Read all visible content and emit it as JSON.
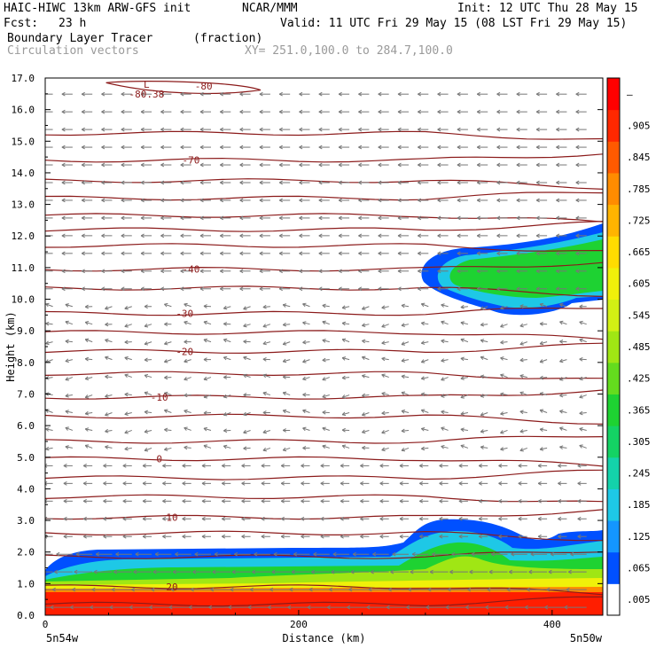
{
  "header": {
    "model": "HAIC-HIWC 13km ARW-GFS init",
    "org": "NCAR/MMM",
    "init": "Init: 12 UTC Thu 28 May 15",
    "fcst_label": "Fcst:",
    "fcst_value": "23 h",
    "valid": "Valid: 11 UTC Fri 29 May 15 (08 LST Fri 29 May 15)",
    "field1": "Boundary Layer Tracer",
    "field1_units": "(fraction)",
    "field2": "Circulation vectors",
    "xy": "XY= 251.0,100.0 to 284.7,100.0"
  },
  "chart_data": {
    "type": "heatmap",
    "xlabel": "Distance (km)",
    "ylabel": "Height (km)",
    "xlim": [
      0,
      440
    ],
    "ylim": [
      0,
      17
    ],
    "xticks": [
      0,
      200,
      400
    ],
    "yticks": [
      "0.0",
      "1.0",
      "2.0",
      "3.0",
      "4.0",
      "5.0",
      "6.0",
      "7.0",
      "8.0",
      "9.0",
      "10.0",
      "11.0",
      "12.0",
      "13.0",
      "14.0",
      "15.0",
      "16.0",
      "17.0"
    ],
    "x_endpoint_left": "5n54w",
    "x_endpoint_right": "5n50w",
    "colorbar": {
      "labels": [
        ".005",
        ".065",
        ".125",
        ".185",
        ".245",
        ".305",
        ".365",
        ".425",
        ".485",
        ".545",
        ".605",
        ".665",
        ".725",
        ".785",
        ".845",
        ".905",
        "–"
      ],
      "colors": [
        "#ffffff",
        "#0050ff",
        "#1496ff",
        "#1ec8e6",
        "#14d2aa",
        "#14d264",
        "#1ed232",
        "#64dc1e",
        "#a0e614",
        "#d2f014",
        "#f0f00a",
        "#ffdc00",
        "#ffb400",
        "#ff8c00",
        "#ff5a00",
        "#ff2800",
        "#ff0000"
      ]
    },
    "temperature_contours": {
      "units": "C",
      "labels": [
        {
          "value": "20",
          "x": 100,
          "y": 0.9
        },
        {
          "value": "10",
          "x": 100,
          "y": 3.1
        },
        {
          "value": "0",
          "x": 90,
          "y": 4.95
        },
        {
          "value": "-10",
          "x": 90,
          "y": 6.9
        },
        {
          "value": "-20",
          "x": 110,
          "y": 8.35
        },
        {
          "value": "-30",
          "x": 110,
          "y": 9.55
        },
        {
          "value": "-40",
          "x": 115,
          "y": 10.95
        },
        {
          "value": "-70",
          "x": 115,
          "y": 14.4
        },
        {
          "value": "-80",
          "x": 125,
          "y": 16.75
        },
        {
          "value": "L",
          "x": 80,
          "y": 16.8
        },
        {
          "value": "-80.38",
          "x": 80,
          "y": 16.5
        }
      ],
      "levels_y": [
        0.35,
        0.9,
        1.85,
        2.6,
        3.1,
        3.75,
        4.35,
        4.95,
        5.5,
        6.3,
        6.9,
        7.65,
        8.35,
        8.95,
        9.55,
        10.35,
        10.95,
        11.7,
        12.2,
        12.65,
        13.2,
        13.75,
        14.4,
        15.25
      ]
    },
    "tracer_features": [
      {
        "name": "boundary_layer",
        "x_range": [
          0,
          440
        ],
        "top_km": 1.9
      },
      {
        "name": "elevated_bump",
        "x_range": [
          280,
          360
        ],
        "top_km": 2.9
      },
      {
        "name": "upper_plume",
        "x_range": [
          290,
          440
        ],
        "base_km": 9.4,
        "top_km": 12.0
      }
    ],
    "vectors": {
      "upper_direction": "westward",
      "lower_direction": "westward",
      "max_near_surface": true
    }
  }
}
